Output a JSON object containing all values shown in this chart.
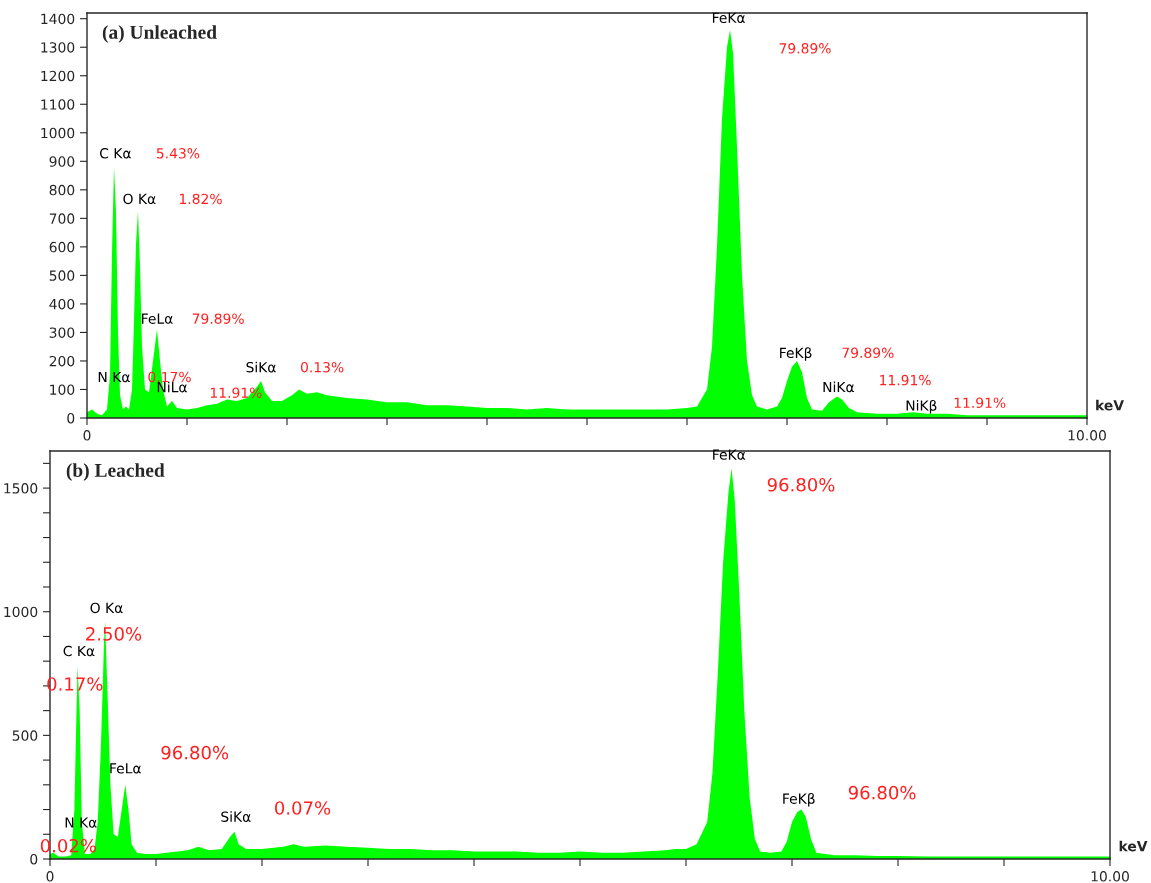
{
  "chart_data": [
    {
      "type": "area",
      "title": "(a) Unleached",
      "xlabel": "keV",
      "xlim": [
        0,
        10
      ],
      "ylim": [
        0,
        1420
      ],
      "xticks": [
        0,
        {
          "value": 1,
          "label": null
        },
        {
          "value": 2,
          "label": null
        },
        {
          "value": 3,
          "label": null
        },
        {
          "value": 4,
          "label": null
        },
        {
          "value": 5,
          "label": null
        },
        {
          "value": 6,
          "label": null
        },
        {
          "value": 7,
          "label": null
        },
        {
          "value": 8,
          "label": null
        },
        {
          "value": 9,
          "label": null
        },
        {
          "value": 10,
          "label": "10.00"
        }
      ],
      "yticks": [
        0,
        100,
        200,
        300,
        400,
        500,
        600,
        700,
        800,
        900,
        1000,
        1100,
        1200,
        1300,
        1400
      ],
      "x": [
        0.0,
        0.05,
        0.1,
        0.15,
        0.2,
        0.23,
        0.25,
        0.27,
        0.29,
        0.31,
        0.33,
        0.36,
        0.39,
        0.42,
        0.45,
        0.47,
        0.49,
        0.51,
        0.53,
        0.55,
        0.58,
        0.62,
        0.66,
        0.7,
        0.73,
        0.76,
        0.8,
        0.85,
        0.9,
        1.0,
        1.1,
        1.2,
        1.3,
        1.4,
        1.5,
        1.6,
        1.7,
        1.74,
        1.78,
        1.85,
        1.95,
        2.05,
        2.12,
        2.2,
        2.3,
        2.4,
        2.6,
        2.8,
        3.0,
        3.2,
        3.4,
        3.6,
        3.8,
        4.0,
        4.2,
        4.4,
        4.6,
        4.8,
        5.0,
        5.2,
        5.4,
        5.6,
        5.8,
        6.0,
        6.1,
        6.2,
        6.25,
        6.3,
        6.35,
        6.4,
        6.43,
        6.46,
        6.5,
        6.55,
        6.6,
        6.65,
        6.7,
        6.8,
        6.9,
        6.95,
        7.0,
        7.05,
        7.1,
        7.15,
        7.2,
        7.25,
        7.35,
        7.42,
        7.5,
        7.55,
        7.62,
        7.7,
        7.9,
        8.1,
        8.26,
        8.4,
        8.6,
        8.8,
        9.0,
        9.2,
        9.4,
        9.6,
        9.8,
        10.0
      ],
      "series": [
        {
          "color": "#00ff00",
          "values": [
            20,
            30,
            15,
            10,
            30,
            150,
            580,
            880,
            720,
            300,
            80,
            30,
            40,
            30,
            100,
            340,
            610,
            725,
            530,
            250,
            100,
            90,
            200,
            310,
            200,
            100,
            40,
            60,
            35,
            30,
            35,
            45,
            50,
            65,
            60,
            70,
            110,
            130,
            90,
            60,
            60,
            80,
            100,
            85,
            90,
            80,
            70,
            65,
            55,
            55,
            45,
            45,
            40,
            35,
            35,
            30,
            35,
            30,
            30,
            30,
            30,
            30,
            30,
            35,
            40,
            100,
            250,
            600,
            1050,
            1300,
            1360,
            1280,
            950,
            500,
            200,
            80,
            40,
            30,
            40,
            70,
            130,
            180,
            200,
            160,
            70,
            30,
            25,
            55,
            75,
            65,
            35,
            20,
            15,
            15,
            20,
            15,
            15,
            10,
            10,
            10,
            10,
            10,
            10,
            10
          ]
        }
      ],
      "annotations": [
        {
          "text": "C Kα",
          "x": 0.27,
          "y": 880
        },
        "5.43%",
        {
          "text": "O Kα",
          "x": 0.51,
          "y": 725
        },
        "1.82%",
        {
          "text": "FeLα",
          "x": 0.7,
          "y": 310
        },
        "79.89%",
        "N Kα",
        "0.17%",
        {
          "text": "NiLα",
          "x": 0.85,
          "y": 60
        },
        "11.91%",
        {
          "text": "SiKα",
          "x": 1.74,
          "y": 130
        },
        "0.13%",
        {
          "text": "FeKα",
          "x": 6.43,
          "y": 1360
        },
        "79.89%",
        {
          "text": "FeKβ",
          "x": 7.1,
          "y": 200
        },
        "79.89%",
        {
          "text": "NiKα",
          "x": 7.5,
          "y": 75
        },
        "11.91%",
        {
          "text": "NiKβ",
          "x": 8.26,
          "y": 20
        },
        "11.91%"
      ]
    },
    {
      "type": "area",
      "title": "(b) Leached",
      "xlabel": "keV",
      "xlim": [
        0,
        10
      ],
      "ylim": [
        0,
        1650
      ],
      "xticks": [
        0,
        {
          "value": 1,
          "label": null
        },
        {
          "value": 2,
          "label": null
        },
        {
          "value": 3,
          "label": null
        },
        {
          "value": 4,
          "label": null
        },
        {
          "value": 5,
          "label": null
        },
        {
          "value": 6,
          "label": null
        },
        {
          "value": 7,
          "label": null
        },
        {
          "value": 8,
          "label": null
        },
        {
          "value": 9,
          "label": null
        },
        {
          "value": 10,
          "label": "10.00"
        }
      ],
      "yticks": [
        0,
        {
          "value": 100,
          "label": null
        },
        {
          "value": 200,
          "label": null
        },
        {
          "value": 300,
          "label": null
        },
        {
          "value": 400,
          "label": null
        },
        500,
        {
          "value": 600,
          "label": null
        },
        {
          "value": 700,
          "label": null
        },
        {
          "value": 800,
          "label": null
        },
        {
          "value": 900,
          "label": null
        },
        1000,
        {
          "value": 1100,
          "label": null
        },
        {
          "value": 1200,
          "label": null
        },
        {
          "value": 1300,
          "label": null
        },
        {
          "value": 1400,
          "label": null
        },
        1500,
        {
          "value": 1600,
          "label": null
        }
      ],
      "x": [
        0.0,
        0.03,
        0.08,
        0.15,
        0.2,
        0.23,
        0.25,
        0.26,
        0.28,
        0.3,
        0.33,
        0.38,
        0.42,
        0.45,
        0.48,
        0.51,
        0.52,
        0.54,
        0.57,
        0.6,
        0.64,
        0.67,
        0.71,
        0.74,
        0.77,
        0.82,
        0.9,
        1.0,
        1.1,
        1.2,
        1.3,
        1.4,
        1.5,
        1.62,
        1.7,
        1.74,
        1.78,
        1.85,
        2.0,
        2.2,
        2.3,
        2.4,
        2.6,
        2.8,
        3.0,
        3.2,
        3.4,
        3.6,
        3.8,
        4.0,
        4.2,
        4.4,
        4.6,
        4.8,
        5.0,
        5.2,
        5.4,
        5.6,
        5.8,
        5.9,
        6.0,
        6.1,
        6.2,
        6.25,
        6.3,
        6.35,
        6.4,
        6.43,
        6.46,
        6.5,
        6.55,
        6.6,
        6.65,
        6.7,
        6.8,
        6.9,
        6.95,
        7.0,
        7.05,
        7.09,
        7.13,
        7.18,
        7.23,
        7.4,
        7.6,
        7.8,
        8.0,
        8.3,
        8.6,
        9.0,
        9.4,
        9.8,
        10.0
      ],
      "series": [
        {
          "color": "#00ff00",
          "values": [
            20,
            25,
            10,
            10,
            15,
            200,
            600,
            780,
            600,
            150,
            20,
            20,
            40,
            150,
            450,
            880,
            960,
            700,
            300,
            100,
            90,
            180,
            300,
            200,
            60,
            25,
            20,
            20,
            25,
            30,
            35,
            50,
            35,
            40,
            90,
            110,
            60,
            40,
            40,
            50,
            60,
            50,
            55,
            50,
            45,
            40,
            40,
            35,
            35,
            30,
            30,
            30,
            25,
            25,
            30,
            25,
            25,
            30,
            35,
            40,
            40,
            60,
            150,
            350,
            750,
            1200,
            1480,
            1580,
            1450,
            1100,
            600,
            250,
            80,
            30,
            25,
            30,
            70,
            150,
            190,
            200,
            170,
            80,
            25,
            15,
            15,
            12,
            12,
            10,
            10,
            10,
            10,
            10,
            10
          ]
        }
      ],
      "annotations": [
        {
          "text": "C Kα",
          "x": 0.26,
          "y": 780
        },
        "0.17%",
        {
          "text": "O Kα",
          "x": 0.52,
          "y": 960
        },
        "2.50%",
        {
          "text": "FeLα",
          "x": 0.71,
          "y": 300
        },
        "96.80%",
        "N Kα",
        "0.02%",
        {
          "text": "SiKα",
          "x": 1.74,
          "y": 110
        },
        "0.07%",
        {
          "text": "FeKα",
          "x": 6.43,
          "y": 1580
        },
        "96.80%",
        {
          "text": "FeKβ",
          "x": 7.09,
          "y": 200
        },
        "96.80%"
      ]
    }
  ]
}
